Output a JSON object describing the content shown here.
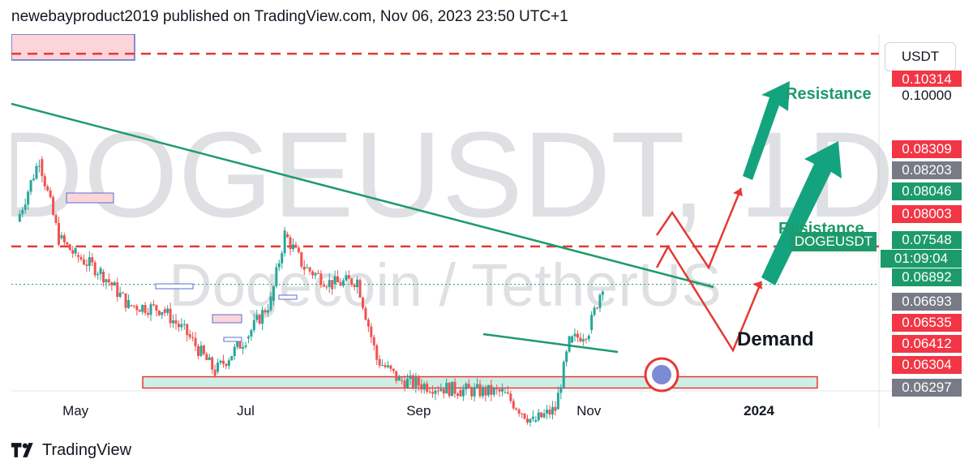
{
  "header": {
    "published": "newebayproduct2019 published on TradingView.com, Nov 06, 2023 23:50 UTC+1"
  },
  "quote_currency": "USDT",
  "watermark": {
    "symbol": "DOGEUSDT, 1D",
    "name": "Dogecoin / TetherUS"
  },
  "symbol_badge": "DOGEUSDT",
  "timer": "01:09:04",
  "annotations": {
    "resistance_top": "Resistance",
    "resistance_mid": "Resistance",
    "demand": "Demand"
  },
  "footer": {
    "brand": "TradingView"
  },
  "price_badges": [
    {
      "label": "0.10314",
      "color": "#f23645"
    },
    {
      "label": "0.10000",
      "color": "#ffffff",
      "text": "#131722"
    },
    {
      "label": "0.08309",
      "color": "#f23645"
    },
    {
      "label": "0.08203",
      "color": "#787b86"
    },
    {
      "label": "0.08046",
      "color": "#1d9a6c"
    },
    {
      "label": "0.08003",
      "color": "#f23645"
    },
    {
      "label": "0.07548",
      "color": "#1d9a6c"
    },
    {
      "label": "0.06892",
      "color": "#1d9a6c"
    },
    {
      "label": "0.06693",
      "color": "#787b86"
    },
    {
      "label": "0.06535",
      "color": "#f23645"
    },
    {
      "label": "0.06412",
      "color": "#f23645"
    },
    {
      "label": "0.06304",
      "color": "#f23645"
    },
    {
      "label": "0.06297",
      "color": "#787b86"
    }
  ],
  "chart_data": {
    "type": "candlestick",
    "title": "DOGEUSDT, 1D",
    "x_ticks": [
      "May",
      "Jul",
      "Sep",
      "Nov",
      "2024"
    ],
    "x_tick_dates": [
      "2023-05-01",
      "2023-07-01",
      "2023-09-01",
      "2023-11-01",
      "2024-01-01"
    ],
    "x_range": [
      "2023-04-08",
      "2024-02-13"
    ],
    "y_range": [
      0.0627,
      0.1055
    ],
    "last_price": 0.07548,
    "resistance_levels": [
      0.10314,
      0.08003
    ],
    "demand_zone": [
      0.06304,
      0.0644
    ],
    "close_path": [
      {
        "x": "2023-04-10",
        "close": 0.083
      },
      {
        "x": "2023-04-18",
        "close": 0.0905
      },
      {
        "x": "2023-04-25",
        "close": 0.081
      },
      {
        "x": "2023-05-01",
        "close": 0.079
      },
      {
        "x": "2023-05-10",
        "close": 0.077
      },
      {
        "x": "2023-05-20",
        "close": 0.073
      },
      {
        "x": "2023-06-01",
        "close": 0.0725
      },
      {
        "x": "2023-06-10",
        "close": 0.0695
      },
      {
        "x": "2023-06-20",
        "close": 0.065
      },
      {
        "x": "2023-07-01",
        "close": 0.069
      },
      {
        "x": "2023-07-10",
        "close": 0.0735
      },
      {
        "x": "2023-07-15",
        "close": 0.0815
      },
      {
        "x": "2023-07-22",
        "close": 0.0775
      },
      {
        "x": "2023-08-01",
        "close": 0.0755
      },
      {
        "x": "2023-08-10",
        "close": 0.076
      },
      {
        "x": "2023-08-17",
        "close": 0.0665
      },
      {
        "x": "2023-08-25",
        "close": 0.064
      },
      {
        "x": "2023-09-01",
        "close": 0.0635
      },
      {
        "x": "2023-09-15",
        "close": 0.0628
      },
      {
        "x": "2023-10-01",
        "close": 0.0625
      },
      {
        "x": "2023-10-12",
        "close": 0.059
      },
      {
        "x": "2023-10-20",
        "close": 0.0605
      },
      {
        "x": "2023-10-25",
        "close": 0.0685
      },
      {
        "x": "2023-11-01",
        "close": 0.07
      },
      {
        "x": "2023-11-06",
        "close": 0.0755
      }
    ]
  }
}
